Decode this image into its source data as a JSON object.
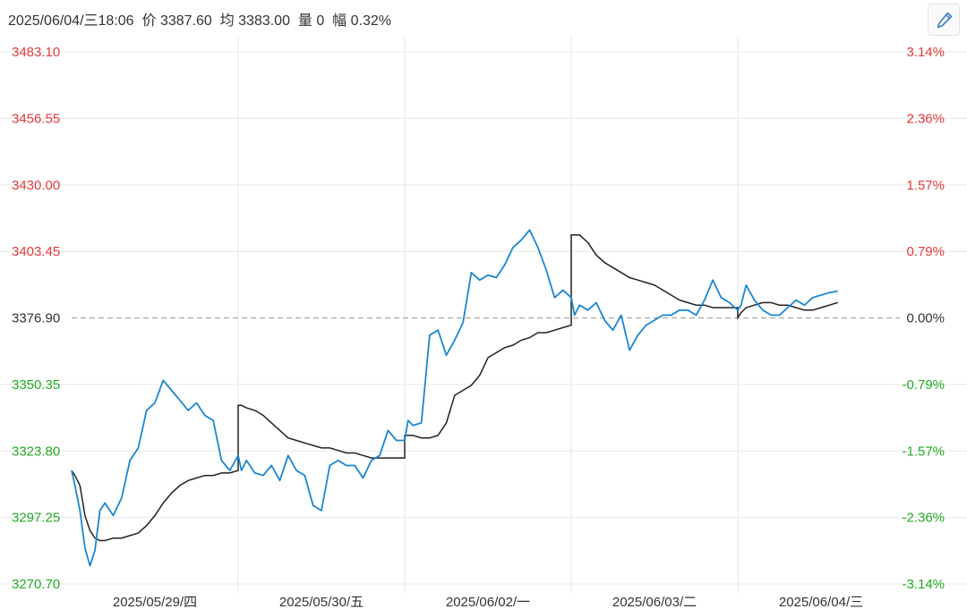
{
  "header": {
    "datetime": "2025/06/04/三18:06",
    "price_label": "价",
    "price": "3387.60",
    "avg_label": "均",
    "avg": "3383.00",
    "volume_label": "量",
    "volume": "0",
    "change_label": "幅",
    "change_pct": "0.32%"
  },
  "toolbar": {
    "edit_icon": "pencil-icon"
  },
  "colors": {
    "price_line": "#1b86d0",
    "avg_line": "#222222",
    "up": "#e33a3a",
    "down": "#22aa22",
    "neutral": "#333333",
    "grid": "#e8e8e8",
    "baseline": "#a8a8a8"
  },
  "chart_data": {
    "type": "line",
    "title": "",
    "xlabel": "",
    "ylabel": "",
    "ylim": [
      3270.7,
      3483.1
    ],
    "baseline": 3376.9,
    "y_ticks": [
      "3483.10",
      "3456.55",
      "3430.00",
      "3403.45",
      "3376.90",
      "3350.35",
      "3323.80",
      "3297.25",
      "3270.70"
    ],
    "pct_ticks": [
      "3.14%",
      "2.36%",
      "1.57%",
      "0.79%",
      "0.00%",
      "-0.79%",
      "-1.57%",
      "-2.36%",
      "-3.14%"
    ],
    "x_labels": [
      "2025/05/29/四",
      "2025/05/30/五",
      "2025/06/02/一",
      "2025/06/03/二",
      "2025/06/04/三"
    ],
    "x_range": [
      0,
      4.62
    ],
    "grid": true,
    "series": [
      {
        "key": "price",
        "x": [
          0.0,
          0.02,
          0.05,
          0.08,
          0.11,
          0.14,
          0.17,
          0.2,
          0.25,
          0.3,
          0.35,
          0.4,
          0.45,
          0.5,
          0.55,
          0.6,
          0.65,
          0.7,
          0.75,
          0.8,
          0.85,
          0.9,
          0.95,
          1.0,
          1.02,
          1.05,
          1.1,
          1.15,
          1.2,
          1.25,
          1.3,
          1.35,
          1.4,
          1.45,
          1.5,
          1.55,
          1.6,
          1.65,
          1.7,
          1.75,
          1.8,
          1.85,
          1.9,
          1.95,
          2.0,
          2.02,
          2.05,
          2.1,
          2.15,
          2.2,
          2.25,
          2.3,
          2.35,
          2.4,
          2.45,
          2.5,
          2.55,
          2.6,
          2.65,
          2.7,
          2.75,
          2.8,
          2.85,
          2.9,
          2.95,
          3.0,
          3.02,
          3.05,
          3.1,
          3.15,
          3.2,
          3.25,
          3.3,
          3.35,
          3.4,
          3.45,
          3.5,
          3.55,
          3.6,
          3.65,
          3.7,
          3.75,
          3.8,
          3.85,
          3.9,
          3.95,
          4.0,
          4.02,
          4.05,
          4.1,
          4.15,
          4.2,
          4.25,
          4.3,
          4.35,
          4.4,
          4.45,
          4.5,
          4.55,
          4.6
        ],
        "y": [
          3316,
          3310,
          3300,
          3285,
          3278,
          3284,
          3300,
          3303,
          3298,
          3305,
          3320,
          3325,
          3340,
          3343,
          3352,
          3348,
          3344,
          3340,
          3343,
          3338,
          3336,
          3320,
          3316,
          3322,
          3316,
          3320,
          3315,
          3314,
          3318,
          3312,
          3322,
          3316,
          3314,
          3302,
          3300,
          3318,
          3320,
          3318,
          3318,
          3313,
          3320,
          3322,
          3332,
          3328,
          3328,
          3336,
          3334,
          3335,
          3370,
          3372,
          3362,
          3368,
          3375,
          3395,
          3392,
          3394,
          3393,
          3398,
          3405,
          3408,
          3412,
          3405,
          3396,
          3385,
          3388,
          3385,
          3378,
          3382,
          3380,
          3383,
          3376,
          3372,
          3378,
          3364,
          3370,
          3374,
          3376,
          3378,
          3378,
          3380,
          3380,
          3378,
          3384,
          3392,
          3385,
          3383,
          3380,
          3382,
          3390,
          3384,
          3380,
          3378,
          3378,
          3381,
          3384,
          3382,
          3385,
          3386,
          3387,
          3387.6
        ]
      },
      {
        "key": "avg",
        "x": [
          0.0,
          0.02,
          0.05,
          0.08,
          0.11,
          0.14,
          0.17,
          0.2,
          0.25,
          0.3,
          0.35,
          0.4,
          0.45,
          0.5,
          0.55,
          0.6,
          0.65,
          0.7,
          0.75,
          0.8,
          0.85,
          0.9,
          0.95,
          1.0,
          1.0,
          1.02,
          1.05,
          1.1,
          1.15,
          1.2,
          1.25,
          1.3,
          1.35,
          1.4,
          1.45,
          1.5,
          1.55,
          1.6,
          1.65,
          1.7,
          1.75,
          1.8,
          1.85,
          1.9,
          1.95,
          2.0,
          2.0,
          2.02,
          2.05,
          2.1,
          2.15,
          2.2,
          2.25,
          2.3,
          2.35,
          2.4,
          2.45,
          2.5,
          2.55,
          2.6,
          2.65,
          2.7,
          2.75,
          2.8,
          2.85,
          2.9,
          2.95,
          3.0,
          3.0,
          3.02,
          3.05,
          3.1,
          3.15,
          3.2,
          3.25,
          3.3,
          3.35,
          3.4,
          3.45,
          3.5,
          3.55,
          3.6,
          3.65,
          3.7,
          3.75,
          3.8,
          3.85,
          3.9,
          3.95,
          4.0,
          4.0,
          4.02,
          4.05,
          4.1,
          4.15,
          4.2,
          4.25,
          4.3,
          4.35,
          4.4,
          4.45,
          4.5,
          4.55,
          4.6
        ],
        "y": [
          3316,
          3314,
          3310,
          3298,
          3292,
          3289,
          3288,
          3288,
          3289,
          3289,
          3290,
          3291,
          3294,
          3298,
          3303,
          3307,
          3310,
          3312,
          3313,
          3314,
          3314,
          3315,
          3315,
          3316,
          3342,
          3342,
          3341,
          3340,
          3338,
          3335,
          3332,
          3329,
          3328,
          3327,
          3326,
          3325,
          3325,
          3324,
          3323,
          3323,
          3322,
          3321,
          3321,
          3321,
          3321,
          3321,
          3330,
          3330,
          3330,
          3329,
          3329,
          3330,
          3335,
          3346,
          3348,
          3350,
          3354,
          3361,
          3363,
          3365,
          3366,
          3368,
          3369,
          3371,
          3371,
          3372,
          3373,
          3374,
          3410,
          3410,
          3410,
          3407,
          3402,
          3399,
          3397,
          3395,
          3393,
          3392,
          3391,
          3390,
          3388,
          3386,
          3384,
          3383,
          3382,
          3382,
          3381,
          3381,
          3381,
          3381,
          3377,
          3379,
          3381,
          3382,
          3383,
          3383,
          3382,
          3382,
          3381,
          3380,
          3380,
          3381,
          3382,
          3383
        ]
      }
    ]
  }
}
